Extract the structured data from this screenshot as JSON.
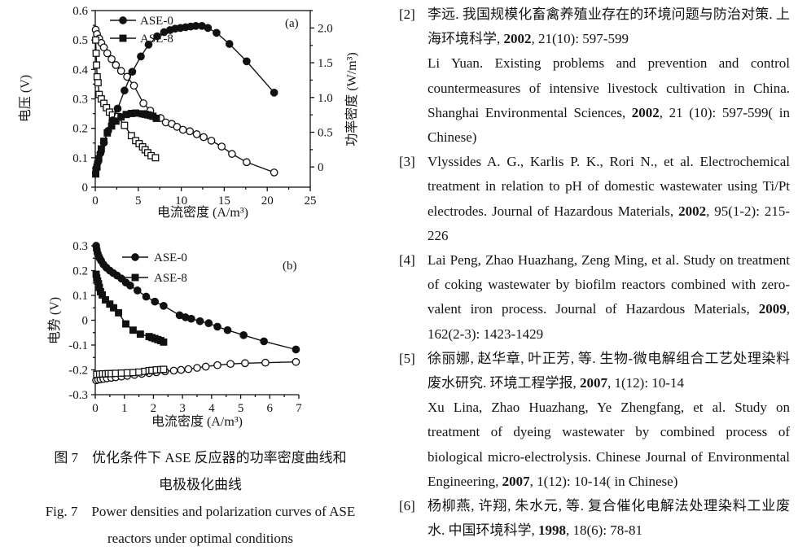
{
  "figure": {
    "caption_cn_line1": "图 7　优化条件下 ASE 反应器的功率密度曲线和",
    "caption_cn_line2": "电极极化曲线",
    "caption_en_line1": "Fig. 7　Power densities and polarization curves of ASE",
    "caption_en_line2": "reactors under optimal conditions"
  },
  "chart_data": [
    {
      "type": "line",
      "name": "power-density-curves-chart",
      "panel_label": "(a)",
      "xlabel": "电流密度 (A/m³)",
      "ylabel": "电压 (V)",
      "ylabel_right": "功率密度 (W/m³)",
      "frame": "box",
      "xlim": [
        0,
        25
      ],
      "xticks": [
        0,
        5,
        10,
        15,
        20,
        25
      ],
      "xticklabels": [
        "0",
        "5",
        "10",
        "15",
        "20",
        "25"
      ],
      "xminor": 2.5,
      "ylim": [
        0,
        0.6
      ],
      "yticks": [
        0,
        0.1,
        0.2,
        0.3,
        0.4,
        0.5,
        0.6
      ],
      "yticklabels": [
        "0",
        "0.1",
        "0.2",
        "0.3",
        "0.4",
        "0.5",
        "0.6"
      ],
      "yminor": 0.05,
      "ylim_right": [
        -0.29,
        2.25
      ],
      "yticks_right": [
        0,
        0.5,
        1.0,
        1.5,
        2.0
      ],
      "yticklabels_right": [
        "0",
        "0.5",
        "1.0",
        "1.5",
        "2.0"
      ],
      "yminor_right": 0.25,
      "legend": [
        {
          "marker": "circle",
          "fill": true,
          "label": "ASE-0"
        },
        {
          "marker": "square",
          "fill": true,
          "label": "ASE-8"
        }
      ],
      "series": [
        {
          "name": "ASE-0 voltage",
          "marker": "circle",
          "fill": false,
          "axis": "left",
          "points": [
            [
              0.05,
              0.535
            ],
            [
              0.2,
              0.52
            ],
            [
              0.45,
              0.505
            ],
            [
              0.7,
              0.49
            ],
            [
              1.0,
              0.475
            ],
            [
              1.4,
              0.455
            ],
            [
              1.9,
              0.435
            ],
            [
              2.4,
              0.415
            ],
            [
              3.0,
              0.395
            ],
            [
              3.7,
              0.375
            ],
            [
              4.5,
              0.345
            ],
            [
              5.6,
              0.285
            ],
            [
              6.4,
              0.26
            ],
            [
              7.6,
              0.235
            ],
            [
              8.2,
              0.22
            ],
            [
              8.9,
              0.215
            ],
            [
              9.5,
              0.205
            ],
            [
              10.2,
              0.195
            ],
            [
              11.0,
              0.19
            ],
            [
              11.8,
              0.18
            ],
            [
              12.6,
              0.17
            ],
            [
              13.5,
              0.158
            ],
            [
              14.7,
              0.138
            ],
            [
              15.9,
              0.113
            ],
            [
              17.6,
              0.085
            ],
            [
              20.8,
              0.05
            ]
          ]
        },
        {
          "name": "ASE-8 voltage",
          "marker": "square",
          "fill": false,
          "axis": "left",
          "points": [
            [
              0.05,
              0.5
            ],
            [
              0.1,
              0.455
            ],
            [
              0.15,
              0.415
            ],
            [
              0.22,
              0.375
            ],
            [
              0.32,
              0.355
            ],
            [
              0.45,
              0.315
            ],
            [
              0.7,
              0.3
            ],
            [
              1.0,
              0.285
            ],
            [
              1.3,
              0.27
            ],
            [
              1.65,
              0.255
            ],
            [
              2.0,
              0.245
            ],
            [
              2.6,
              0.24
            ],
            [
              3.4,
              0.21
            ],
            [
              4.2,
              0.175
            ],
            [
              4.7,
              0.158
            ],
            [
              5.1,
              0.148
            ],
            [
              5.5,
              0.137
            ],
            [
              5.8,
              0.127
            ],
            [
              6.1,
              0.117
            ],
            [
              6.5,
              0.107
            ],
            [
              7.0,
              0.1
            ]
          ]
        },
        {
          "name": "ASE-0 power density",
          "marker": "circle",
          "fill": true,
          "axis": "right",
          "points": [
            [
              0.1,
              -0.02
            ],
            [
              0.3,
              0.07
            ],
            [
              0.6,
              0.2
            ],
            [
              1.0,
              0.35
            ],
            [
              1.5,
              0.52
            ],
            [
              2.0,
              0.67
            ],
            [
              2.6,
              0.84
            ],
            [
              3.4,
              1.1
            ],
            [
              4.3,
              1.37
            ],
            [
              5.3,
              1.59
            ],
            [
              6.2,
              1.76
            ],
            [
              7.2,
              1.88
            ],
            [
              8.0,
              1.94
            ],
            [
              8.7,
              1.97
            ],
            [
              9.3,
              1.99
            ],
            [
              9.9,
              2.0
            ],
            [
              10.5,
              2.01
            ],
            [
              11.1,
              2.02
            ],
            [
              11.7,
              2.03
            ],
            [
              12.4,
              2.03
            ],
            [
              13.1,
              2.0
            ],
            [
              14.1,
              1.93
            ],
            [
              15.6,
              1.77
            ],
            [
              17.6,
              1.52
            ],
            [
              20.8,
              1.07
            ]
          ]
        },
        {
          "name": "ASE-8 power density",
          "marker": "square",
          "fill": true,
          "axis": "right",
          "points": [
            [
              0.05,
              -0.1
            ],
            [
              0.2,
              0.0
            ],
            [
              0.4,
              0.12
            ],
            [
              0.7,
              0.26
            ],
            [
              1.0,
              0.37
            ],
            [
              1.4,
              0.49
            ],
            [
              1.9,
              0.59
            ],
            [
              2.4,
              0.66
            ],
            [
              3.0,
              0.72
            ],
            [
              3.6,
              0.755
            ],
            [
              4.2,
              0.77
            ],
            [
              4.7,
              0.775
            ],
            [
              5.5,
              0.765
            ],
            [
              5.8,
              0.758
            ],
            [
              6.1,
              0.75
            ],
            [
              6.4,
              0.742
            ],
            [
              6.7,
              0.73
            ],
            [
              7.1,
              0.7
            ]
          ]
        }
      ]
    },
    {
      "type": "line",
      "name": "polarization-curves-chart",
      "panel_label": "(b)",
      "xlabel": "电流密度 (A/m³)",
      "ylabel": "电势 (V)",
      "frame": "L",
      "xlim": [
        0,
        7
      ],
      "xticks": [
        0,
        1,
        2,
        3,
        4,
        5,
        6,
        7
      ],
      "xticklabels": [
        "0",
        "1",
        "2",
        "3",
        "4",
        "5",
        "6",
        "7"
      ],
      "xminor": 0.5,
      "ylim": [
        -0.3,
        0.3
      ],
      "yticks": [
        -0.3,
        -0.2,
        -0.1,
        0,
        0.1,
        0.2,
        0.3
      ],
      "yticklabels": [
        "-0.3",
        "-0.2",
        "-0.1",
        "0",
        "0.1",
        "0.2",
        "0.3"
      ],
      "yminor": 0.05,
      "legend": [
        {
          "marker": "circle",
          "fill": true,
          "label": "ASE-0"
        },
        {
          "marker": "square",
          "fill": true,
          "label": "ASE-8"
        }
      ],
      "series": [
        {
          "name": "ASE-0 cathode potential",
          "marker": "circle",
          "fill": true,
          "axis": "left",
          "points": [
            [
              0.03,
              0.3
            ],
            [
              0.05,
              0.285
            ],
            [
              0.08,
              0.27
            ],
            [
              0.11,
              0.26
            ],
            [
              0.15,
              0.25
            ],
            [
              0.2,
              0.24
            ],
            [
              0.28,
              0.225
            ],
            [
              0.38,
              0.212
            ],
            [
              0.5,
              0.2
            ],
            [
              0.62,
              0.19
            ],
            [
              0.75,
              0.18
            ],
            [
              0.9,
              0.168
            ],
            [
              1.05,
              0.152
            ],
            [
              1.2,
              0.14
            ],
            [
              1.45,
              0.12
            ],
            [
              1.75,
              0.095
            ],
            [
              2.05,
              0.075
            ],
            [
              2.35,
              0.058
            ],
            [
              2.9,
              0.02
            ],
            [
              3.1,
              0.012
            ],
            [
              3.3,
              0.006
            ],
            [
              3.6,
              -0.004
            ],
            [
              3.9,
              -0.012
            ],
            [
              4.2,
              -0.026
            ],
            [
              4.55,
              -0.04
            ],
            [
              5.1,
              -0.06
            ],
            [
              5.8,
              -0.085
            ],
            [
              6.9,
              -0.118
            ]
          ]
        },
        {
          "name": "ASE-8 cathode potential",
          "marker": "square",
          "fill": true,
          "axis": "left",
          "points": [
            [
              0.03,
              0.185
            ],
            [
              0.05,
              0.17
            ],
            [
              0.08,
              0.158
            ],
            [
              0.11,
              0.147
            ],
            [
              0.14,
              0.132
            ],
            [
              0.18,
              0.115
            ],
            [
              0.24,
              0.102
            ],
            [
              0.35,
              0.082
            ],
            [
              0.5,
              0.065
            ],
            [
              0.63,
              0.05
            ],
            [
              0.8,
              0.03
            ],
            [
              1.05,
              -0.015
            ],
            [
              1.3,
              -0.04
            ],
            [
              1.55,
              -0.056
            ],
            [
              1.85,
              -0.066
            ],
            [
              1.95,
              -0.07
            ],
            [
              2.05,
              -0.074
            ],
            [
              2.15,
              -0.078
            ],
            [
              2.25,
              -0.082
            ],
            [
              2.35,
              -0.088
            ]
          ]
        },
        {
          "name": "ASE-0 anode potential",
          "marker": "circle",
          "fill": false,
          "axis": "left",
          "points": [
            [
              0.03,
              -0.242
            ],
            [
              0.1,
              -0.24
            ],
            [
              0.18,
              -0.238
            ],
            [
              0.28,
              -0.236
            ],
            [
              0.4,
              -0.234
            ],
            [
              0.55,
              -0.232
            ],
            [
              0.7,
              -0.23
            ],
            [
              0.9,
              -0.227
            ],
            [
              1.1,
              -0.224
            ],
            [
              1.35,
              -0.22
            ],
            [
              1.6,
              -0.216
            ],
            [
              1.85,
              -0.213
            ],
            [
              2.1,
              -0.21
            ],
            [
              2.4,
              -0.206
            ],
            [
              2.7,
              -0.203
            ],
            [
              2.95,
              -0.2
            ],
            [
              3.2,
              -0.197
            ],
            [
              3.5,
              -0.192
            ],
            [
              3.8,
              -0.187
            ],
            [
              4.2,
              -0.181
            ],
            [
              4.65,
              -0.176
            ],
            [
              5.15,
              -0.173
            ],
            [
              5.85,
              -0.171
            ],
            [
              6.9,
              -0.168
            ]
          ]
        },
        {
          "name": "ASE-8 anode potential",
          "marker": "square",
          "fill": false,
          "axis": "left",
          "points": [
            [
              0.05,
              -0.218
            ],
            [
              0.15,
              -0.217
            ],
            [
              0.25,
              -0.216
            ],
            [
              0.35,
              -0.216
            ],
            [
              0.45,
              -0.215
            ],
            [
              0.55,
              -0.215
            ],
            [
              0.7,
              -0.214
            ],
            [
              0.9,
              -0.213
            ],
            [
              1.1,
              -0.212
            ],
            [
              1.3,
              -0.211
            ],
            [
              1.5,
              -0.209
            ],
            [
              1.7,
              -0.206
            ],
            [
              1.85,
              -0.203
            ],
            [
              1.95,
              -0.202
            ],
            [
              2.1,
              -0.2
            ],
            [
              2.25,
              -0.199
            ],
            [
              2.35,
              -0.198
            ]
          ]
        }
      ]
    }
  ],
  "references": [
    {
      "num": "[2]",
      "paragraphs": [
        {
          "segments": [
            {
              "t": "李远. 我国规模化畜禽养殖业存在的环境问题与防治对策. 上海环境科学, "
            },
            {
              "t": "2002",
              "b": true
            },
            {
              "t": ", 21(10): 597-599"
            }
          ]
        },
        {
          "segments": [
            {
              "t": "Li Yuan. Existing problems and prevention and control countermeasures of intensive livestock cultivation in China. Shanghai Environmental Sciences, "
            },
            {
              "t": "2002",
              "b": true
            },
            {
              "t": ", 21 (10): 597-599( in Chinese)"
            }
          ]
        }
      ]
    },
    {
      "num": "[3]",
      "paragraphs": [
        {
          "segments": [
            {
              "t": "Vlyssides A. G., Karlis P. K., Rori N., et al. Electrochemical treatment in relation to pH of domestic wastewater using Ti/Pt electrodes. Journal of Hazardous Materials, "
            },
            {
              "t": "2002",
              "b": true
            },
            {
              "t": ", 95(1-2): 215-226"
            }
          ]
        }
      ]
    },
    {
      "num": "[4]",
      "paragraphs": [
        {
          "segments": [
            {
              "t": "Lai Peng, Zhao Huazhang, Zeng Ming, et al. Study on treatment of coking wastewater by biofilm reactors combined with zero-valent iron process. Journal of Hazardous Materials, "
            },
            {
              "t": "2009",
              "b": true
            },
            {
              "t": ", 162(2-3): 1423-1429"
            }
          ]
        }
      ]
    },
    {
      "num": "[5]",
      "paragraphs": [
        {
          "segments": [
            {
              "t": "徐丽娜, 赵华章, 叶正芳, 等. 生物-微电解组合工艺处理染料废水研究. 环境工程学报, "
            },
            {
              "t": "2007",
              "b": true
            },
            {
              "t": ", 1(12): 10-14"
            }
          ]
        },
        {
          "segments": [
            {
              "t": "Xu Lina, Zhao Huazhang, Ye Zhengfang, et al. Study on treatment of dyeing wastewater by combined process of biological micro-electrolysis. Chinese Journal of Environmental Engineering, "
            },
            {
              "t": "2007",
              "b": true
            },
            {
              "t": ", 1(12): 10-14( in Chinese)"
            }
          ]
        }
      ]
    },
    {
      "num": "[6]",
      "paragraphs": [
        {
          "segments": [
            {
              "t": "杨柳燕, 许翔, 朱水元, 等. 复合催化电解法处理染料工业废水. 中国环境科学, "
            },
            {
              "t": "1998",
              "b": true
            },
            {
              "t": ", 18(6): 78-81"
            }
          ]
        }
      ]
    }
  ]
}
